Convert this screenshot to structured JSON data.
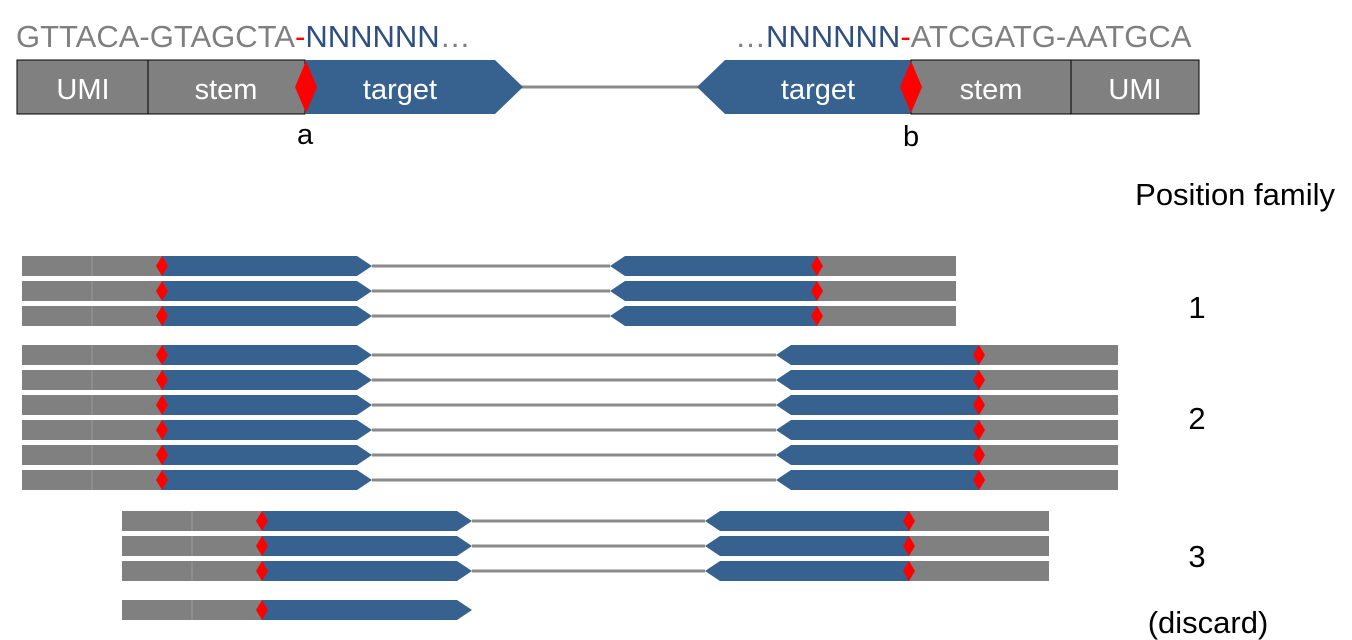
{
  "sequences": {
    "left": {
      "gray1": "GTTACA-GTAGCTA",
      "red": "-",
      "blue": "NNNNNN",
      "tail": "…"
    },
    "right": {
      "head": "…",
      "blue": "NNNNNN",
      "red": "-",
      "gray": "ATCGATG-AATGCA"
    }
  },
  "construct": {
    "left_umi": "UMI",
    "left_stem": "stem",
    "left_target": "target",
    "right_target": "target",
    "right_stem": "stem",
    "right_umi": "UMI",
    "site_a": "a",
    "site_b": "b"
  },
  "position_family_header": "Position family",
  "families": [
    {
      "label": "1",
      "reads": 3
    },
    {
      "label": "2",
      "reads": 6
    },
    {
      "label": "3",
      "reads": 3
    },
    {
      "label": "(discard)",
      "reads": 1
    }
  ],
  "colors": {
    "umi_stem": "#808080",
    "target": "#37618f",
    "breakpoint": "#ff0000",
    "text_gray": "#7f7f7f",
    "text_blue": "#2e4f80"
  }
}
